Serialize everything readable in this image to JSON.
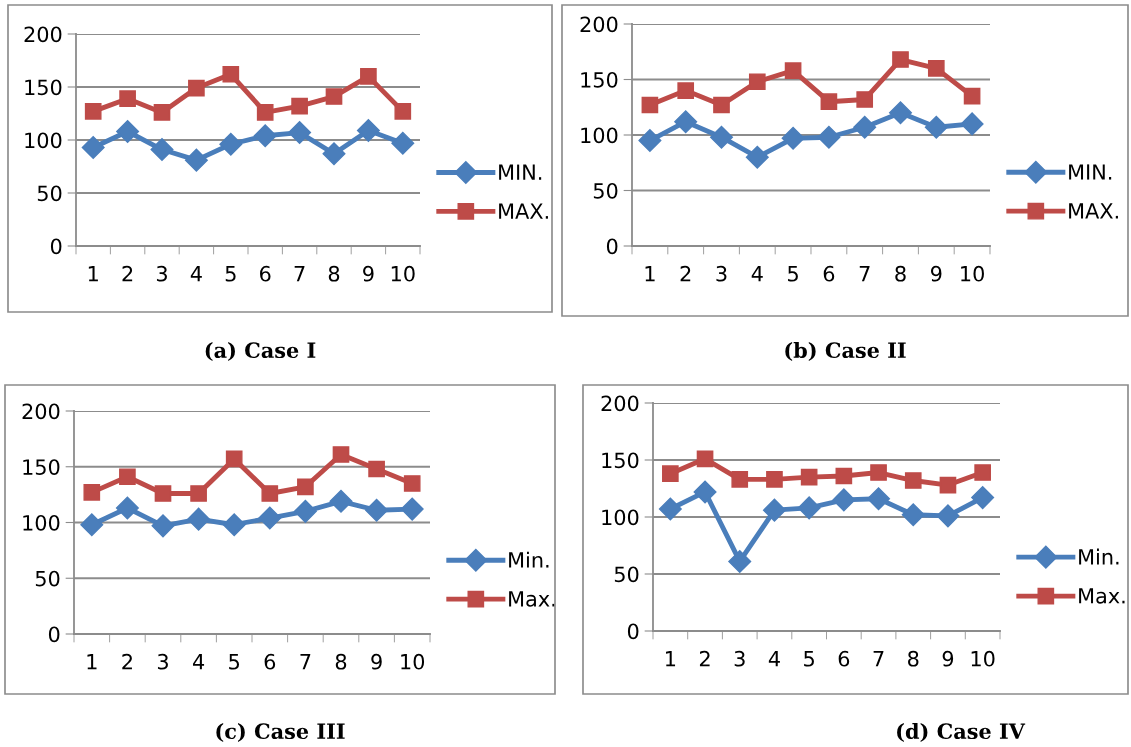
{
  "chart_data": [
    {
      "type": "line",
      "title": "(a) Case I",
      "categories": [
        "1",
        "2",
        "3",
        "4",
        "5",
        "6",
        "7",
        "8",
        "9",
        "10"
      ],
      "series": [
        {
          "name": "MIN.",
          "color": "#4a7ebb",
          "marker": "diamond",
          "values": [
            93,
            108,
            91,
            81,
            96,
            104,
            107,
            87,
            109,
            97
          ]
        },
        {
          "name": "MAX.",
          "color": "#be4b48",
          "marker": "square",
          "values": [
            127,
            139,
            126,
            149,
            162,
            126,
            132,
            141,
            160,
            127
          ]
        }
      ],
      "ylim": [
        0,
        200
      ],
      "yticks": [
        0,
        50,
        100,
        150,
        200
      ],
      "grid": "y",
      "legend": "bottom right",
      "line_style": "solid"
    },
    {
      "type": "line",
      "title": "(b) Case II",
      "categories": [
        "1",
        "2",
        "3",
        "4",
        "5",
        "6",
        "7",
        "8",
        "9",
        "10"
      ],
      "series": [
        {
          "name": "MIN.",
          "color": "#4a7ebb",
          "marker": "diamond",
          "values": [
            95,
            112,
            98,
            80,
            97,
            98,
            107,
            120,
            107,
            110
          ]
        },
        {
          "name": "MAX.",
          "color": "#be4b48",
          "marker": "square",
          "values": [
            127,
            140,
            127,
            148,
            158,
            130,
            132,
            168,
            160,
            135
          ]
        }
      ],
      "ylim": [
        0,
        200
      ],
      "yticks": [
        0,
        50,
        100,
        150,
        200
      ],
      "grid": "y",
      "legend": "bottom right",
      "line_style": "solid"
    },
    {
      "type": "line",
      "title": "(c) Case III",
      "categories": [
        "1",
        "2",
        "3",
        "4",
        "5",
        "6",
        "7",
        "8",
        "9",
        "10"
      ],
      "series": [
        {
          "name": "Min.",
          "color": "#4a7ebb",
          "marker": "diamond",
          "values": [
            98,
            113,
            97,
            103,
            98,
            104,
            110,
            119,
            111,
            112
          ]
        },
        {
          "name": "Max.",
          "color": "#be4b48",
          "marker": "square",
          "values": [
            127,
            141,
            126,
            126,
            157,
            126,
            132,
            161,
            148,
            135
          ]
        }
      ],
      "ylim": [
        0,
        200
      ],
      "yticks": [
        0,
        50,
        100,
        150,
        200
      ],
      "grid": "y",
      "legend": "bottom right",
      "line_style": "solid"
    },
    {
      "type": "line",
      "title": "(d) Case IV",
      "categories": [
        "1",
        "2",
        "3",
        "4",
        "5",
        "6",
        "7",
        "8",
        "9",
        "10"
      ],
      "series": [
        {
          "name": "Min.",
          "color": "#4a7ebb",
          "marker": "diamond",
          "values": [
            107,
            122,
            61,
            106,
            108,
            115,
            116,
            102,
            101,
            117
          ]
        },
        {
          "name": "Max.",
          "color": "#be4b48",
          "marker": "square",
          "values": [
            138,
            151,
            133,
            133,
            135,
            136,
            139,
            132,
            128,
            139
          ]
        }
      ],
      "ylim": [
        0,
        200
      ],
      "yticks": [
        0,
        50,
        100,
        150,
        200
      ],
      "grid": "y",
      "legend": "bottom right",
      "line_style": "solid"
    }
  ]
}
